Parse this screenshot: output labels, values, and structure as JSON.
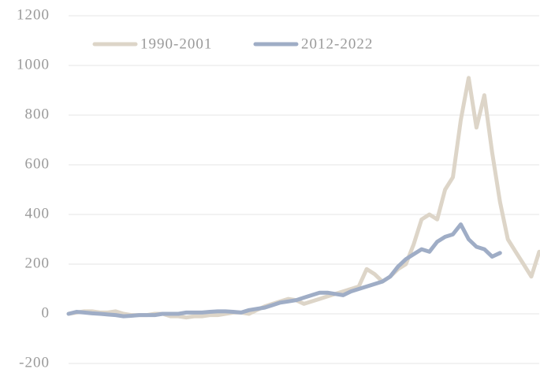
{
  "chart_data": {
    "type": "line",
    "series": [
      {
        "name": "1990-2001",
        "color": "#ddd5c8",
        "values": [
          0,
          5,
          10,
          10,
          5,
          5,
          10,
          0,
          -5,
          -5,
          -5,
          0,
          0,
          -10,
          -10,
          -15,
          -10,
          -10,
          -5,
          -5,
          0,
          5,
          5,
          0,
          15,
          30,
          40,
          50,
          60,
          55,
          40,
          50,
          60,
          70,
          80,
          90,
          100,
          110,
          180,
          160,
          130,
          150,
          180,
          200,
          280,
          380,
          400,
          380,
          500,
          550,
          780,
          950,
          750,
          880,
          650,
          450,
          300,
          250,
          200,
          150,
          250
        ]
      },
      {
        "name": "2012-2022",
        "color": "#9fadc6",
        "values": [
          0,
          8,
          5,
          2,
          0,
          -3,
          -5,
          -10,
          -8,
          -5,
          -5,
          -5,
          0,
          0,
          0,
          5,
          5,
          5,
          8,
          10,
          10,
          8,
          5,
          15,
          20,
          25,
          35,
          45,
          50,
          55,
          65,
          75,
          85,
          85,
          80,
          75,
          90,
          100,
          110,
          120,
          130,
          150,
          190,
          220,
          240,
          260,
          250,
          290,
          310,
          320,
          360,
          300,
          270,
          260,
          230,
          245
        ]
      }
    ],
    "ylim": [
      -200,
      1200
    ],
    "yticks": [
      -200,
      0,
      200,
      400,
      600,
      800,
      1000,
      1200
    ],
    "grid": true,
    "legend": "top"
  }
}
